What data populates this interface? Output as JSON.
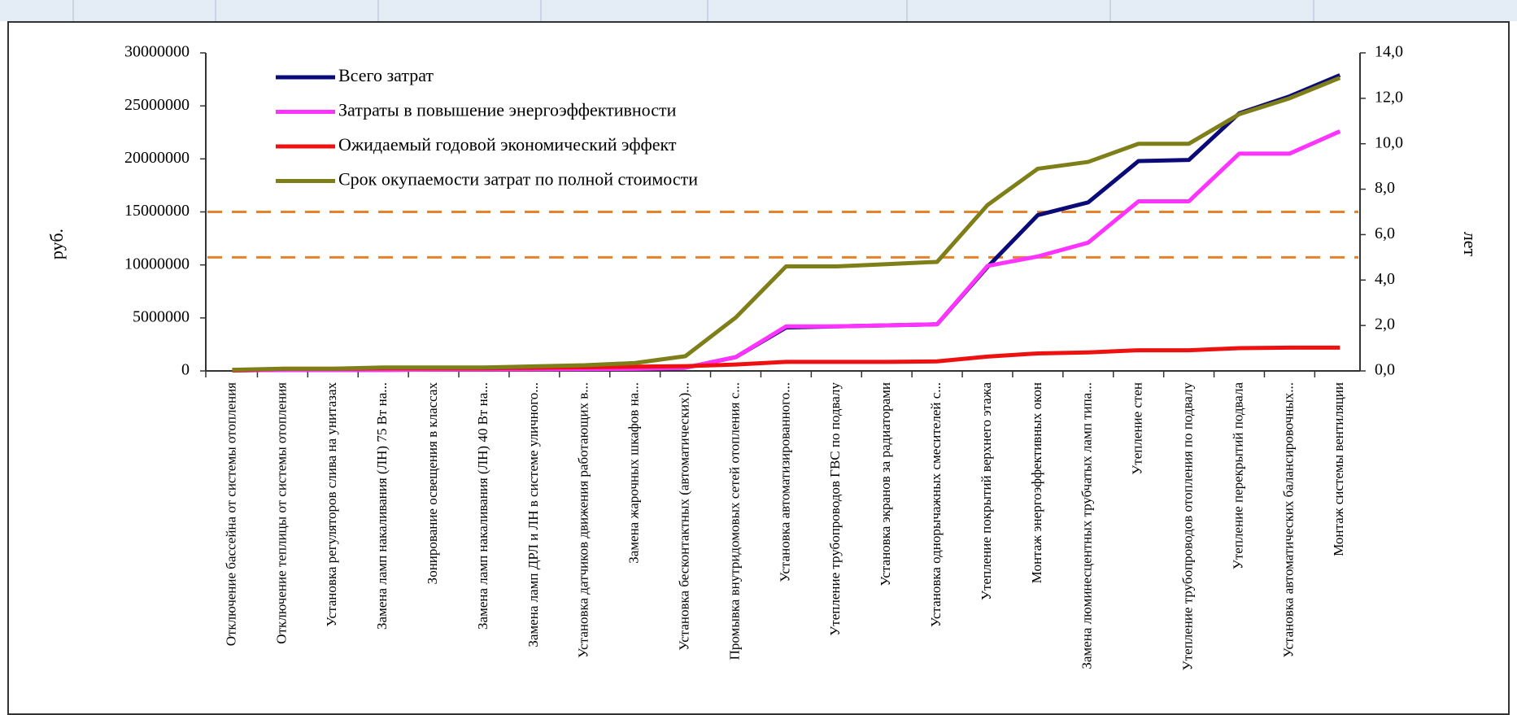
{
  "chart_data": {
    "type": "line",
    "ylabel": "руб.",
    "y2label": "лет",
    "categories": [
      "Отключение бассейна от системы отопления",
      "Отключение теплицы от системы отопления",
      "Установка регуляторов слива на унитазах",
      "Замена ламп накаливания (ЛН) 75 Вт на...",
      "Зонирование освещения в классах",
      "Замена ламп накаливания (ЛН) 40 Вт на...",
      "Замена ламп ДРЛ и ЛН в системе уличного...",
      "Установка датчиков движения работающих в...",
      "Замена жарочных шкафов на...",
      "Установка бесконтактных (автоматических)...",
      "Промывка внутридомовых сетей отопления с...",
      "Установка автоматизированного...",
      "Утепление трубопроводов ГВС по подвалу",
      "Установка экранов за радиаторами",
      "Установка однорычажных смесителей с...",
      "Утепление покрытий верхнего этажа",
      "Монтаж энергоэффективных окон",
      "Замена люминесцентных трубчатых ламп типа...",
      "Утепление стен",
      "Утепление трубопроводов отопления по подвалу",
      "Утепление перекрытий подвала",
      "Установка автоматических балансировочных...",
      "Монтаж системы вентиляции"
    ],
    "series": [
      {
        "name": "Всего затрат",
        "color": "#0a0a78",
        "values": [
          50000,
          100000,
          100000,
          100000,
          120000,
          130000,
          150000,
          170000,
          200000,
          300000,
          1300000,
          4100000,
          4200000,
          4300000,
          4400000,
          9800000,
          14700000,
          15900000,
          19800000,
          19900000,
          24300000,
          25900000,
          27900000
        ]
      },
      {
        "name": "Затраты в повышение энергоэффективности",
        "color": "#ff33ff",
        "values": [
          50000,
          100000,
          100000,
          100000,
          120000,
          130000,
          150000,
          170000,
          200000,
          300000,
          1300000,
          4200000,
          4200000,
          4300000,
          4400000,
          9900000,
          10800000,
          12100000,
          16000000,
          16000000,
          20500000,
          20500000,
          22600000
        ]
      },
      {
        "name": "Ожидаемый годовой экономический эффект",
        "color": "#ee1111",
        "values": [
          50000,
          200000,
          200000,
          250000,
          250000,
          250000,
          300000,
          350000,
          400000,
          450000,
          600000,
          850000,
          850000,
          850000,
          900000,
          1350000,
          1650000,
          1750000,
          1950000,
          1950000,
          2150000,
          2200000,
          2200000
        ]
      },
      {
        "name": "Срок окупаемости затрат по полной стоимости",
        "color": "#7f7f1a",
        "axis": "y2",
        "values": [
          0.05,
          0.1,
          0.1,
          0.15,
          0.15,
          0.15,
          0.2,
          0.25,
          0.35,
          0.65,
          2.35,
          4.6,
          4.6,
          4.7,
          4.8,
          7.3,
          8.9,
          9.2,
          10.0,
          10.0,
          11.3,
          12.0,
          12.9
        ]
      }
    ],
    "ylim": [
      0,
      30000000
    ],
    "yticks": [
      0,
      5000000,
      10000000,
      15000000,
      20000000,
      25000000,
      30000000
    ],
    "y2lim": [
      0,
      14
    ],
    "y2ticks": [
      {
        "value": 0,
        "label": "0,0"
      },
      {
        "value": 2,
        "label": "2,0"
      },
      {
        "value": 4,
        "label": "4,0"
      },
      {
        "value": 6,
        "label": "6,0"
      },
      {
        "value": 8,
        "label": "8,0"
      },
      {
        "value": 10,
        "label": "10,0"
      },
      {
        "value": 12,
        "label": "12,0"
      },
      {
        "value": 14,
        "label": "14,0"
      }
    ],
    "y2_reference_lines": [
      5,
      7
    ],
    "reference_line_color": "#e8812a",
    "legend": "top-left"
  }
}
